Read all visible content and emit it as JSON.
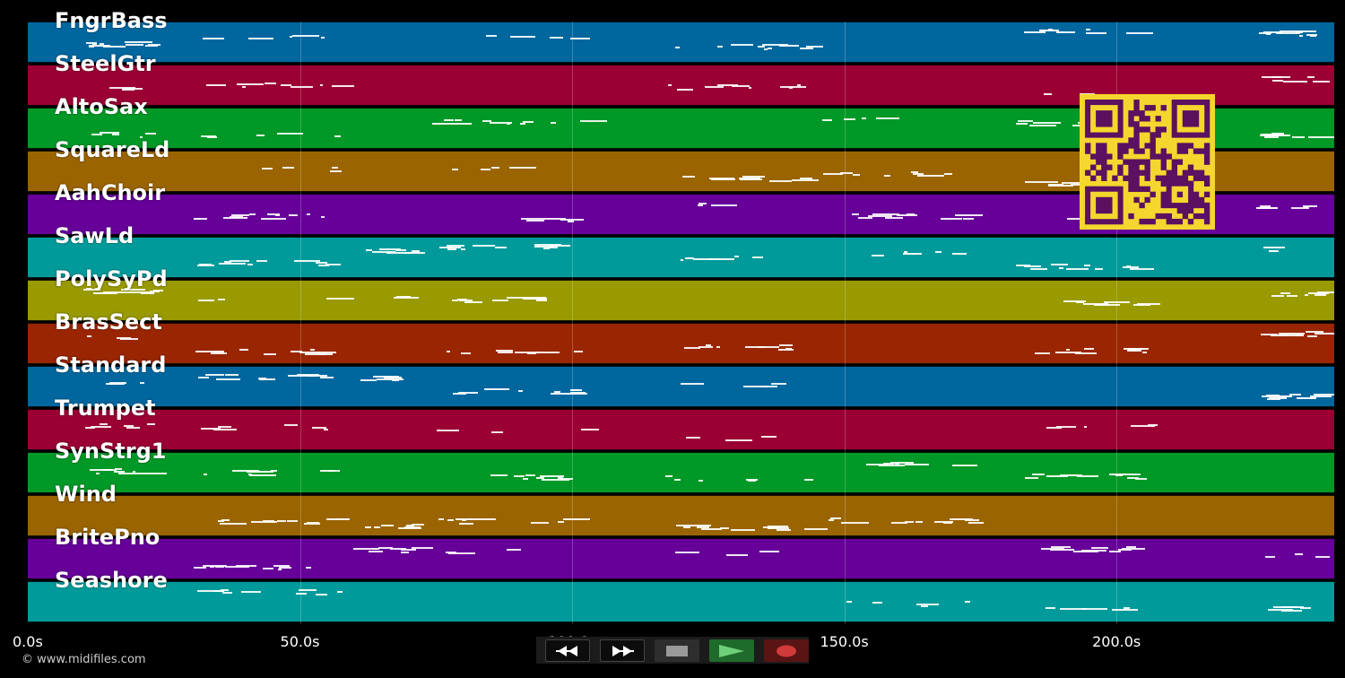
{
  "app": {
    "credit": "© www.midifiles.com",
    "timeline_seconds": 240
  },
  "tracks": [
    {
      "name": "FngrBass",
      "color": "#00679e"
    },
    {
      "name": "SteelGtr",
      "color": "#9a0033"
    },
    {
      "name": "AltoSax",
      "color": "#009826"
    },
    {
      "name": "SquareLd",
      "color": "#9a6400"
    },
    {
      "name": "AahChoir",
      "color": "#660099"
    },
    {
      "name": "SawLd",
      "color": "#009a9a"
    },
    {
      "name": "PolySyPd",
      "color": "#999900"
    },
    {
      "name": "BrasSect",
      "color": "#992600"
    },
    {
      "name": "Standard",
      "color": "#00679e"
    },
    {
      "name": "Trumpet",
      "color": "#9a0033"
    },
    {
      "name": "SynStrg1",
      "color": "#009826"
    },
    {
      "name": "Wind",
      "color": "#9a6400"
    },
    {
      "name": "BritePno",
      "color": "#660099"
    },
    {
      "name": "Seashore",
      "color": "#009a9a"
    }
  ],
  "time_axis": {
    "ticks": [
      {
        "label": "0.0s",
        "seconds": 0
      },
      {
        "label": "50.0s",
        "seconds": 50
      },
      {
        "label": "100.0s",
        "seconds": 100
      },
      {
        "label": "150.0s",
        "seconds": 150
      },
      {
        "label": "200.0s",
        "seconds": 200
      }
    ]
  },
  "qr_code": {
    "fg": "#5b1060",
    "bg": "#f4d62e"
  },
  "transport": {
    "rewind_icon": "double-left-arrow-icon",
    "forward_icon": "double-right-arrow-icon",
    "stop_icon": "stop-square-icon",
    "play_icon": "play-triangle-icon",
    "record_icon": "record-dot-icon"
  }
}
